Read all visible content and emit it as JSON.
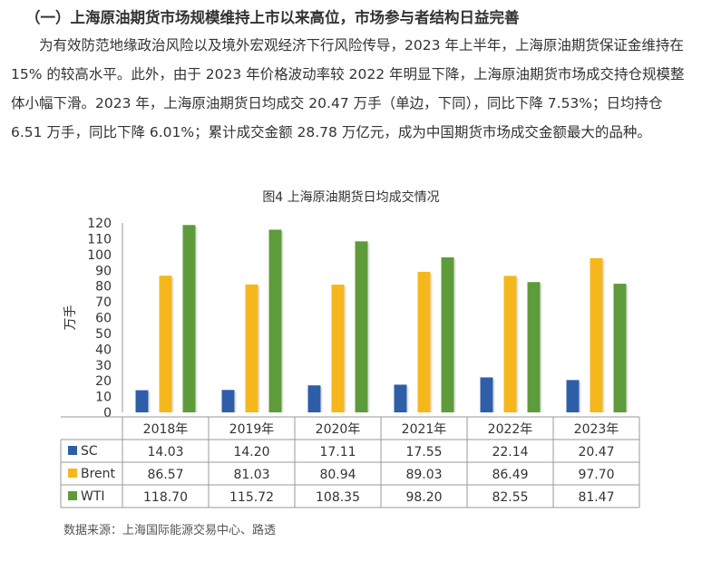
{
  "section_heading": "（一）上海原油期货市场规模维持上市以来高位，市场参与者结构日益完善",
  "paragraph": "为有效防范地缘政治风险以及境外宏观经济下行风险传导，2023 年上半年，上海原油期货保证金维持在 15% 的较高水平。此外，由于 2023 年价格波动率较 2022 年明显下降，上海原油期货市场成交持仓规模整体小幅下滑。2023 年，上海原油期货日均成交 20.47 万手（单边，下同），同比下降 7.53%；日均持仓 6.51 万手，同比下降 6.01%；累计成交金额 28.78 万亿元，成为中国期货市场成交金额最大的品种。",
  "source": "数据来源：上海国际能源交易中心、路透",
  "chart_data": {
    "type": "bar",
    "title": "图4 上海原油期货日均成交情况",
    "ylabel": "万手",
    "ylim": [
      0,
      120
    ],
    "yticks": [
      0,
      10,
      20,
      30,
      40,
      50,
      60,
      70,
      80,
      90,
      100,
      110,
      120
    ],
    "categories": [
      "2018年",
      "2019年",
      "2020年",
      "2021年",
      "2022年",
      "2023年"
    ],
    "series": [
      {
        "name": "SC",
        "color": "#2e5ea8",
        "values": [
          14.03,
          14.2,
          17.11,
          17.55,
          22.14,
          20.47
        ],
        "labels": [
          "14.03",
          "14.20",
          "17.11",
          "17.55",
          "22.14",
          "20.47"
        ]
      },
      {
        "name": "Brent",
        "color": "#f5b71b",
        "values": [
          86.57,
          81.03,
          80.94,
          89.03,
          86.49,
          97.7
        ],
        "labels": [
          "86.57",
          "81.03",
          "80.94",
          "89.03",
          "86.49",
          "97.70"
        ]
      },
      {
        "name": "WTI",
        "color": "#5e9b3a",
        "values": [
          118.7,
          115.72,
          108.35,
          98.2,
          82.55,
          81.47
        ],
        "labels": [
          "118.70",
          "115.72",
          "108.35",
          "98.20",
          "82.55",
          "81.47"
        ]
      }
    ],
    "grid": false,
    "legend": "data-table"
  }
}
